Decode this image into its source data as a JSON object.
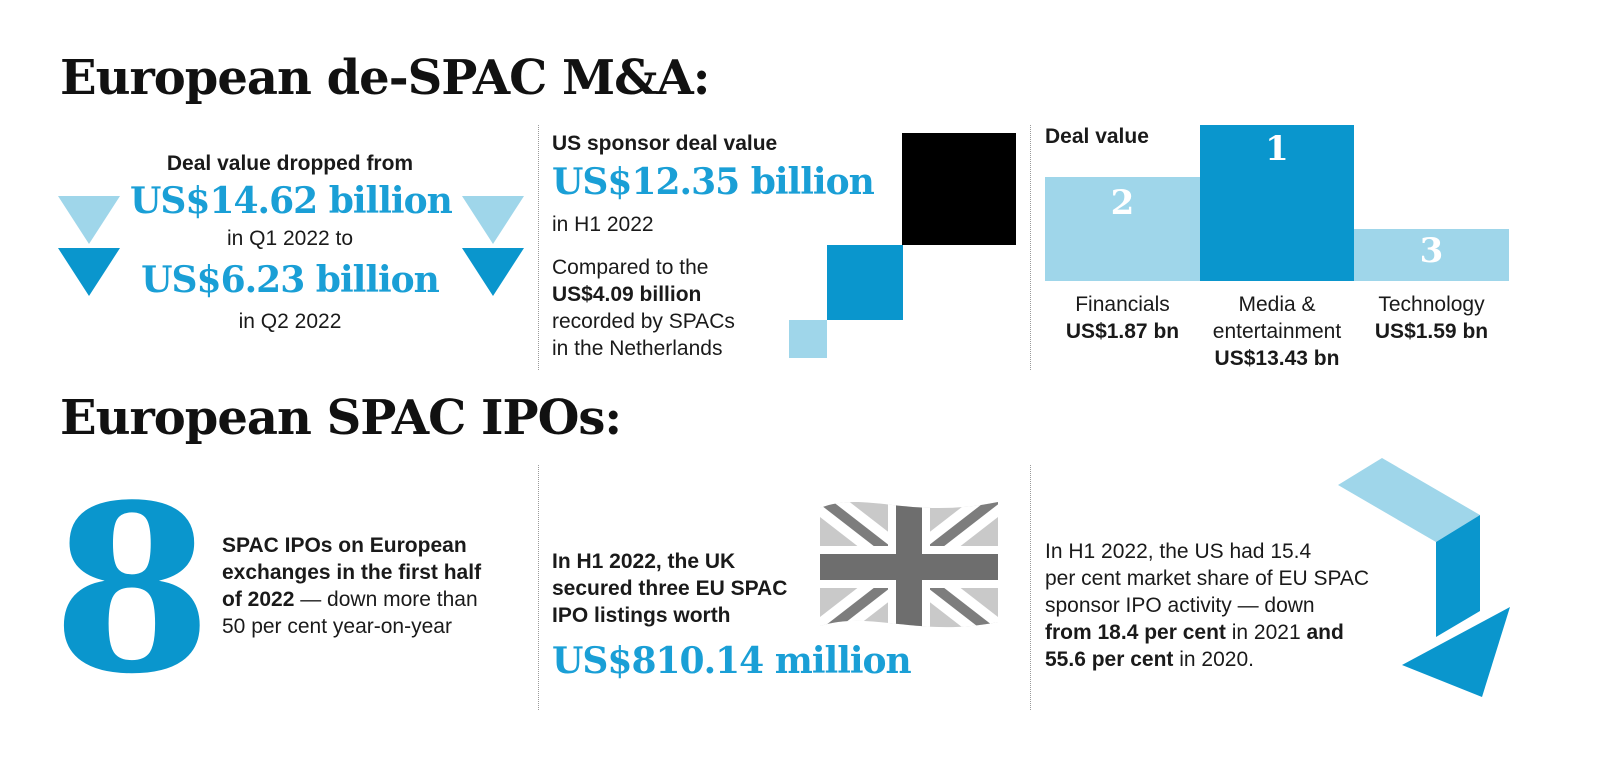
{
  "colors": {
    "dark_blue": "#0a96cd",
    "light_blue": "#9fd6ea",
    "black": "#000000",
    "flag_gray": "#8a8a8a"
  },
  "section1": {
    "title": "European de-SPAC M&A:",
    "panel1": {
      "line1": "Deal value dropped from",
      "value1": "US$14.62 billion",
      "line2": "in Q1 2022 to",
      "value2": "US$6.23 billion",
      "line3": "in Q2 2022",
      "icons": [
        "triangle-down-icon",
        "triangle-down-icon"
      ]
    },
    "panel2": {
      "heading": "US sponsor deal value",
      "value": "US$12.35 billion",
      "period": "in H1 2022",
      "compare_pre": "Compared to the",
      "compare_value": "US$4.09 billion",
      "compare_post1": "recorded by SPACs",
      "compare_post2": "in the Netherlands"
    },
    "panel3": {
      "heading": "Deal value",
      "bars": [
        {
          "rank": "2",
          "sector": "Financials",
          "value": "US$1.87 bn"
        },
        {
          "rank": "1",
          "sector_line1": "Media &",
          "sector_line2": "entertainment",
          "value": "US$13.43 bn"
        },
        {
          "rank": "3",
          "sector": "Technology",
          "value": "US$1.59 bn"
        }
      ]
    }
  },
  "section2": {
    "title": "European SPAC IPOs:",
    "panel1": {
      "number": "8",
      "bold1": "SPAC IPOs on European",
      "bold2": "exchanges in the first half",
      "bold3": "of 2022",
      "rest3": " — down more than",
      "rest4": "50 per cent year-on-year"
    },
    "panel2": {
      "line1": "In H1 2022, the UK",
      "line2": "secured three EU SPAC",
      "line3": "IPO listings worth",
      "value": "US$810.14 million",
      "icon": "uk-flag-icon"
    },
    "panel3": {
      "line1": "In H1 2022, the US had 15.4",
      "line2": "per cent market share of EU SPAC",
      "line3": "sponsor IPO activity — down",
      "bold4": "from 18.4 per cent",
      "rest4": " in 2021 ",
      "bold4b": "and",
      "bold5": "55.6 per cent",
      "rest5": " in 2020.",
      "icon": "down-arrow-icon"
    }
  }
}
